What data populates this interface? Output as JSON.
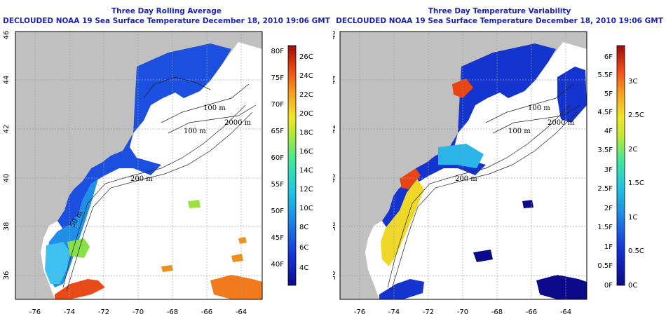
{
  "panels": [
    {
      "title": "Three Day Rolling Average",
      "subtitle": "DECLOUDED NOAA 19 Sea Surface Temperature December 18, 2010 19:06 GMT",
      "x_ticks": [
        "-76",
        "-74",
        "-72",
        "-70",
        "-68",
        "-66",
        "-64"
      ],
      "y_ticks": [
        "46",
        "44",
        "42",
        "40",
        "38",
        "36"
      ],
      "colorbar": {
        "left_labels": [
          "80F",
          "75F",
          "70F",
          "65F",
          "60F",
          "55F",
          "50F",
          "45F",
          "40F"
        ],
        "right_labels": [
          "26C",
          "24C",
          "22C",
          "20C",
          "18C",
          "16C",
          "14C",
          "12C",
          "10C",
          "8C",
          "6C",
          "4C"
        ]
      },
      "contour_labels": [
        "100 m",
        "100 m",
        "2000 m",
        "200 m",
        "50 m"
      ]
    },
    {
      "title": "Three Day Temperature Variability",
      "subtitle": "DECLOUDED NOAA 19 Sea Surface Temperature December 18, 2010 19:06 GMT",
      "x_ticks": [
        "-76",
        "-74",
        "-72",
        "-70",
        "-68",
        "-66",
        "-64"
      ],
      "y_ticks": [
        "46",
        "44",
        "42",
        "40",
        "38",
        "36"
      ],
      "colorbar": {
        "left_labels": [
          "6F",
          "5.5F",
          "5F",
          "4.5F",
          "4F",
          "3.5F",
          "3F",
          "2.5F",
          "2F",
          "1.5F",
          "1F",
          "0.5F",
          "0F"
        ],
        "right_labels": [
          "3C",
          "2.5C",
          "2C",
          "1.5C",
          "1C",
          "0.5C",
          "0C"
        ]
      },
      "contour_labels": [
        "100 m",
        "100 m",
        "2000 m",
        "200 m"
      ]
    }
  ],
  "colors": {
    "title": "#1a23b4",
    "land": "#c0c0c0",
    "ocean_no_data": "#ffffff",
    "grid": "#a0a0a0"
  }
}
